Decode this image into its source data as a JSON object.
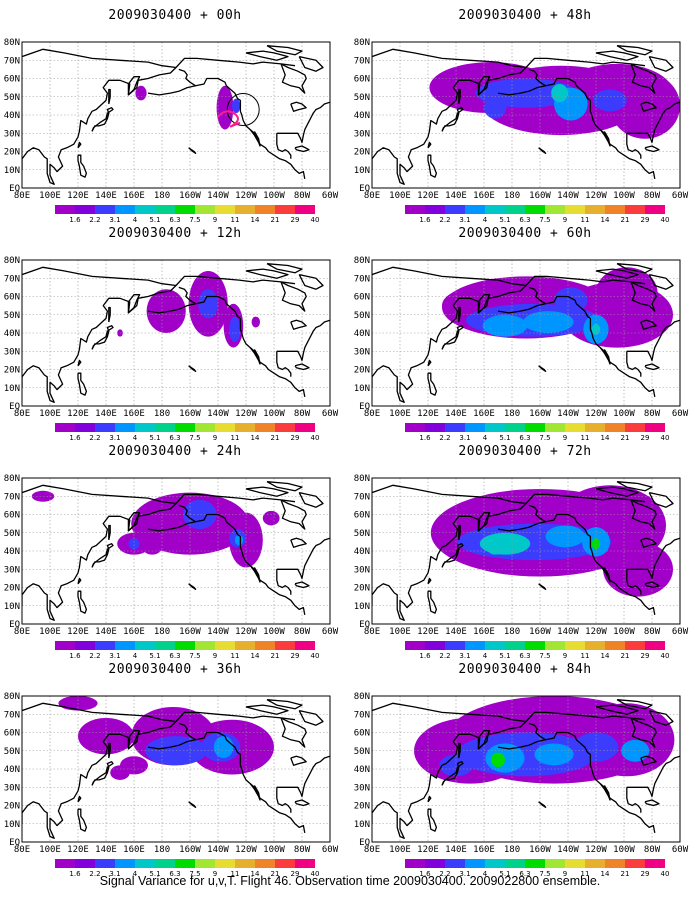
{
  "panels": [
    {
      "title": "2009030400 + 00h",
      "region": "Flight 46 observation region"
    },
    {
      "title": "2009030400 + 48h"
    },
    {
      "title": "2009030400 + 12h"
    },
    {
      "title": "2009030400 + 60h"
    },
    {
      "title": "2009030400 + 24h"
    },
    {
      "title": "2009030400 + 72h"
    },
    {
      "title": "2009030400 + 36h"
    },
    {
      "title": "2009030400 + 84h"
    }
  ],
  "axes": {
    "lat_labels": [
      "80N",
      "70N",
      "60N",
      "50N",
      "40N",
      "30N",
      "20N",
      "10N",
      "EQ"
    ],
    "lon_labels": [
      "80E",
      "100E",
      "120E",
      "140E",
      "160E",
      "180",
      "160W",
      "140W",
      "120W",
      "100W",
      "80W",
      "60W"
    ]
  },
  "colorbar": {
    "labels": [
      "1.6",
      "2.2",
      "3.1",
      "4",
      "5.1",
      "6.3",
      "7.5",
      "9",
      "11",
      "14",
      "21",
      "29",
      "40"
    ],
    "colors": [
      "#a000c8",
      "#8200dc",
      "#3c3cff",
      "#0096ff",
      "#00c8c8",
      "#00d28c",
      "#00dc00",
      "#a0e632",
      "#e6dc32",
      "#e6af2d",
      "#f08228",
      "#fa3c3c",
      "#f00082"
    ]
  },
  "footer": "Signal Variance for u,v,T. Flight 46. Observation time 2009030400. 2009022800 ensemble."
}
